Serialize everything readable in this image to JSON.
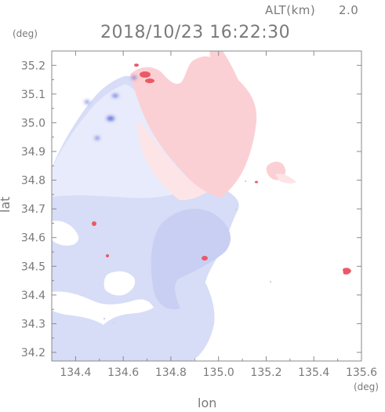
{
  "header": {
    "altitude_label": "ALT(km)",
    "altitude_value": "2.0",
    "timestamp": "2018/10/23 16:22:30"
  },
  "axes": {
    "x_label": "lon",
    "y_label": "lat",
    "x_unit": "(deg)",
    "y_unit": "(deg)",
    "x_ticks": [
      "134.4",
      "134.6",
      "134.8",
      "135.0",
      "135.2",
      "135.4",
      "135.6"
    ],
    "y_ticks": [
      "35.2",
      "35.1",
      "35.0",
      "34.9",
      "34.8",
      "34.7",
      "34.6",
      "34.5",
      "34.4",
      "34.3",
      "34.2"
    ]
  },
  "map": {
    "lon_range": [
      134.3,
      135.6
    ],
    "lat_range": [
      34.17,
      35.25
    ],
    "grid": false,
    "colors": {
      "frame": "#8a8a8a",
      "tick": "#8a8a8a",
      "text": "#7a7a7a",
      "blue_field": "#d7dcf7",
      "blue_light": "#e8ebfb",
      "blue_mid": "#c9cff3",
      "pink_field": "#fbd0d4",
      "pink_light": "#fde5e7",
      "red_spot": "#ea5a66",
      "blue_spot": "#5b6bd6"
    }
  }
}
